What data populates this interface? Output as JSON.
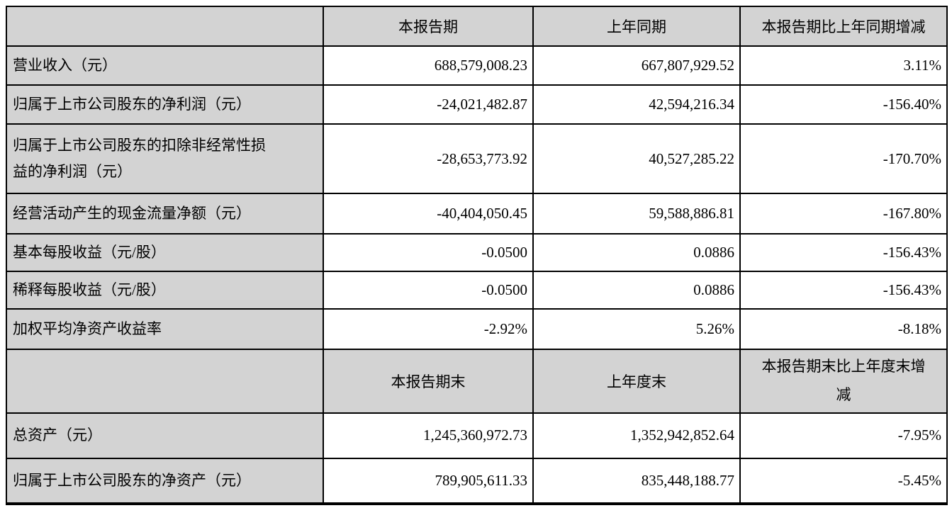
{
  "colors": {
    "header_bg": "#d3d3d3",
    "label_bg": "#d3d3d3",
    "cell_bg": "#ffffff",
    "border": "#000000",
    "text": "#000000"
  },
  "table": {
    "section_period": {
      "columns": [
        "",
        "本报告期",
        "上年同期",
        "本报告期比上年同期增减"
      ],
      "rows": [
        {
          "label": "营业收入（元）",
          "current": "688,579,008.23",
          "prior": "667,807,929.52",
          "change": "3.11%"
        },
        {
          "label": "归属于上市公司股东的净利润（元）",
          "current": "-24,021,482.87",
          "prior": "42,594,216.34",
          "change": "-156.40%"
        },
        {
          "label": "归属于上市公司股东的扣除非经常性损益的净利润（元）",
          "current": "-28,653,773.92",
          "prior": "40,527,285.22",
          "change": "-170.70%"
        },
        {
          "label": "经营活动产生的现金流量净额（元）",
          "current": "-40,404,050.45",
          "prior": "59,588,886.81",
          "change": "-167.80%"
        },
        {
          "label": "基本每股收益（元/股）",
          "current": "-0.0500",
          "prior": "0.0886",
          "change": "-156.43%"
        },
        {
          "label": "稀释每股收益（元/股）",
          "current": "-0.0500",
          "prior": "0.0886",
          "change": "-156.43%"
        },
        {
          "label": "加权平均净资产收益率",
          "current": "-2.92%",
          "prior": "5.26%",
          "change": "-8.18%"
        }
      ]
    },
    "section_yearend": {
      "columns": [
        "",
        "本报告期末",
        "上年度末",
        "本报告期末比上年度末增减"
      ],
      "rows": [
        {
          "label": "总资产（元）",
          "current": "1,245,360,972.73",
          "prior": "1,352,942,852.64",
          "change": "-7.95%"
        },
        {
          "label": "归属于上市公司股东的净资产（元）",
          "current": "789,905,611.33",
          "prior": "835,448,188.77",
          "change": "-5.45%"
        }
      ]
    }
  }
}
